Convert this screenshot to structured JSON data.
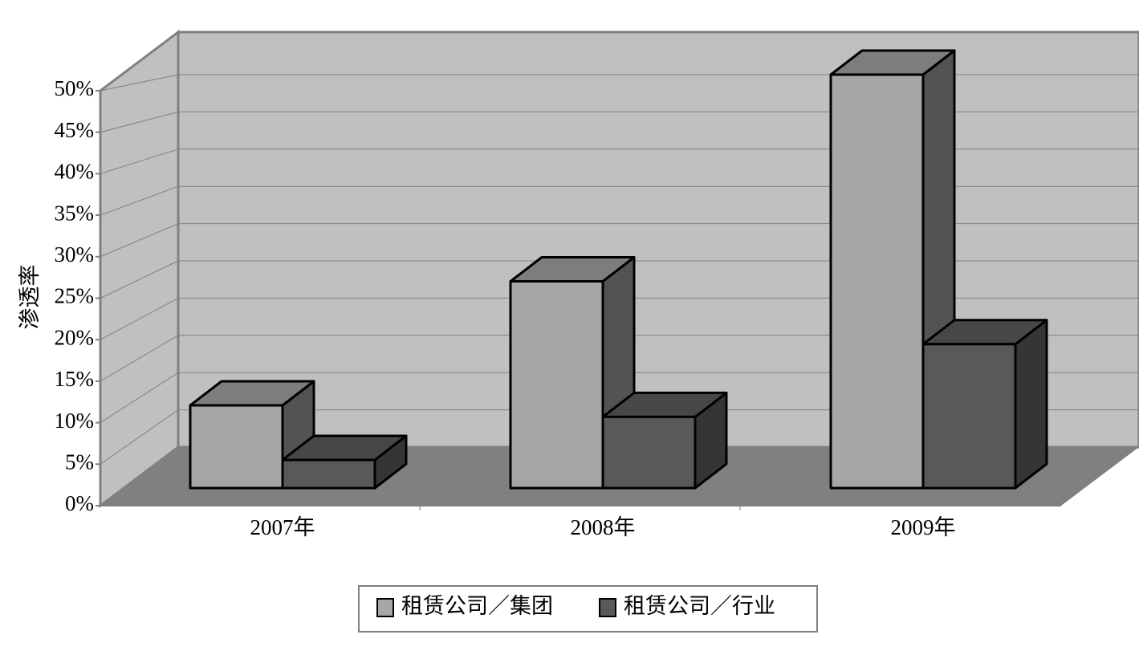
{
  "chart_data": {
    "type": "bar3d",
    "y_label": "渗透率",
    "categories": [
      "2007年",
      "2008年",
      "2009年"
    ],
    "series": [
      {
        "name": "租赁公司／集团",
        "color": "#a6a6a6",
        "values": [
          10,
          25,
          50
        ]
      },
      {
        "name": "租赁公司／行业",
        "color": "#595959",
        "values": [
          3.4,
          8.6,
          17.4
        ]
      }
    ],
    "ylim": [
      0,
      50
    ],
    "yticks": [
      {
        "value": 0,
        "label": "0%"
      },
      {
        "value": 5,
        "label": "5%"
      },
      {
        "value": 10,
        "label": "10%"
      },
      {
        "value": 15,
        "label": "15%"
      },
      {
        "value": 20,
        "label": "20%"
      },
      {
        "value": 25,
        "label": "25%"
      },
      {
        "value": 30,
        "label": "30%"
      },
      {
        "value": 35,
        "label": "35%"
      },
      {
        "value": 40,
        "label": "40%"
      },
      {
        "value": 45,
        "label": "45%"
      },
      {
        "value": 50,
        "label": "50%"
      }
    ],
    "grid": true,
    "legend": "bottom"
  }
}
